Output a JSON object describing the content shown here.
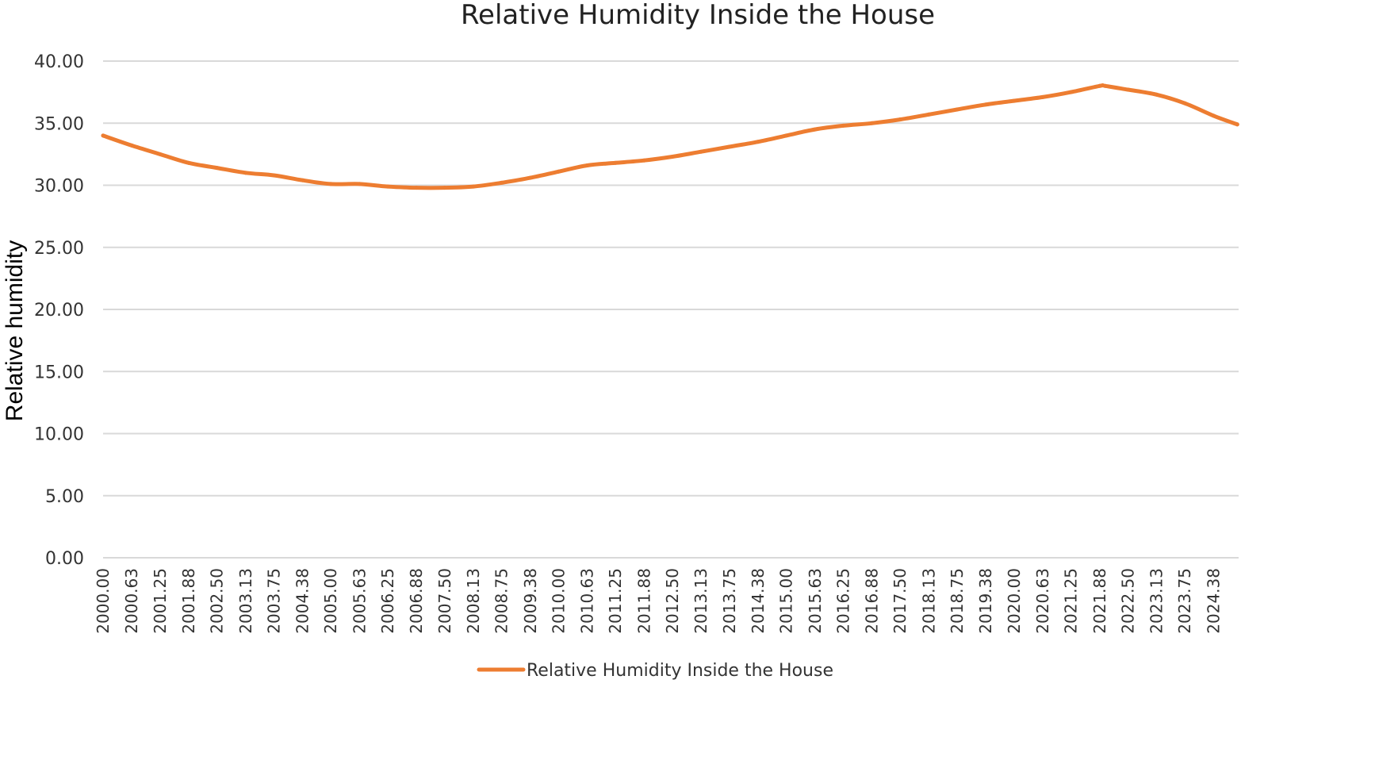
{
  "chart_data": {
    "type": "line",
    "title": "Relative Humidity Inside the House",
    "xlabel": "",
    "ylabel": "Relative humidity",
    "ylim": [
      0,
      40
    ],
    "y_ticks": [
      "0.00",
      "5.00",
      "10.00",
      "15.00",
      "20.00",
      "25.00",
      "30.00",
      "35.00",
      "40.00"
    ],
    "x_ticks": [
      "2000.00",
      "2000.63",
      "2001.25",
      "2001.88",
      "2002.50",
      "2003.13",
      "2003.75",
      "2004.38",
      "2005.00",
      "2005.63",
      "2006.25",
      "2006.88",
      "2007.50",
      "2008.13",
      "2008.75",
      "2009.38",
      "2010.00",
      "2010.63",
      "2011.25",
      "2011.88",
      "2012.50",
      "2013.13",
      "2013.75",
      "2014.38",
      "2015.00",
      "2015.63",
      "2016.25",
      "2016.88",
      "2017.50",
      "2018.13",
      "2018.75",
      "2019.38",
      "2020.00",
      "2020.63",
      "2021.25",
      "2021.88",
      "2022.50",
      "2023.13",
      "2023.75",
      "2024.38"
    ],
    "x": [
      2000.0,
      2000.63,
      2001.25,
      2001.88,
      2002.5,
      2003.13,
      2003.75,
      2004.38,
      2005.0,
      2005.63,
      2006.25,
      2006.88,
      2007.5,
      2008.13,
      2008.75,
      2009.38,
      2010.0,
      2010.63,
      2011.25,
      2011.88,
      2012.5,
      2013.13,
      2013.75,
      2014.38,
      2015.0,
      2015.63,
      2016.25,
      2016.88,
      2017.5,
      2018.13,
      2018.75,
      2019.38,
      2020.0,
      2020.63,
      2021.25,
      2021.88,
      2022.0,
      2022.5,
      2023.13,
      2023.75,
      2024.38,
      2024.9
    ],
    "series": [
      {
        "name": "Relative Humidity Inside the House",
        "color": "#ed7d31",
        "values": [
          34.0,
          33.2,
          32.5,
          31.8,
          31.4,
          31.0,
          30.8,
          30.4,
          30.1,
          30.1,
          29.9,
          29.8,
          29.8,
          29.9,
          30.2,
          30.6,
          31.1,
          31.6,
          31.8,
          32.0,
          32.3,
          32.7,
          33.1,
          33.5,
          34.0,
          34.5,
          34.8,
          35.0,
          35.3,
          35.7,
          36.1,
          36.5,
          36.8,
          37.1,
          37.5,
          38.0,
          38.0,
          37.7,
          37.3,
          36.6,
          35.6,
          34.9
        ]
      }
    ],
    "grid": true,
    "legend": "bottom"
  }
}
